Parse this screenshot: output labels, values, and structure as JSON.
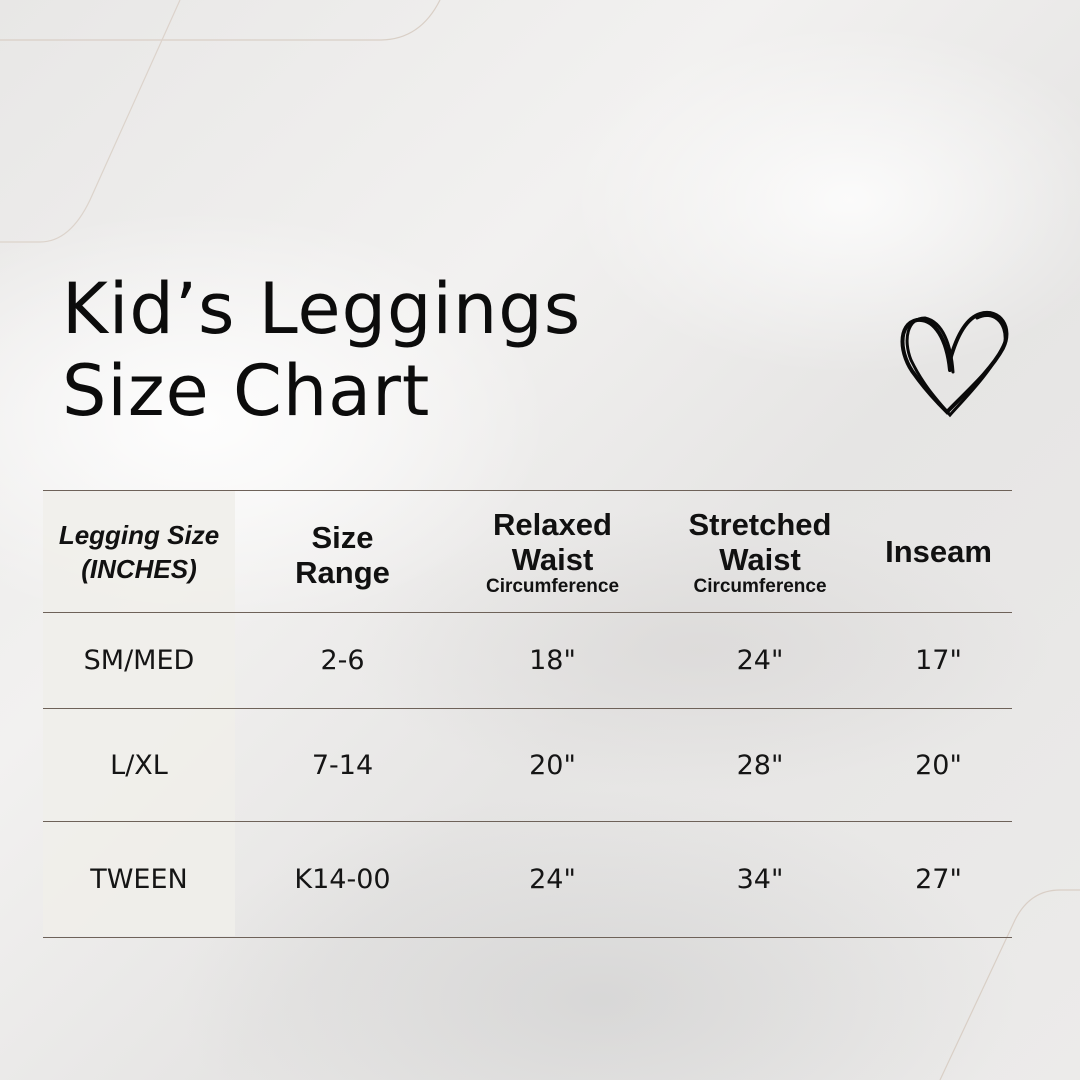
{
  "title": {
    "line1": "Kid’s Leggings",
    "line2": "Size Chart"
  },
  "icon": "heart-icon",
  "table": {
    "headers": [
      {
        "line1": "Legging Size",
        "line2": "(INCHES)",
        "sub": ""
      },
      {
        "line1": "Size",
        "line2": "Range",
        "sub": ""
      },
      {
        "line1": "Relaxed",
        "line2": "Waist",
        "sub": "Circumference"
      },
      {
        "line1": "Stretched",
        "line2": "Waist",
        "sub": "Circumference"
      },
      {
        "line1": "Inseam",
        "line2": "",
        "sub": ""
      }
    ],
    "rows": [
      [
        "SM/MED",
        "2-6",
        "18\"",
        "24\"",
        "17\""
      ],
      [
        "L/XL",
        "7-14",
        "20\"",
        "28\"",
        "20\""
      ],
      [
        "TWEEN",
        "K14-00",
        "24\"",
        "34\"",
        "27\""
      ]
    ]
  }
}
